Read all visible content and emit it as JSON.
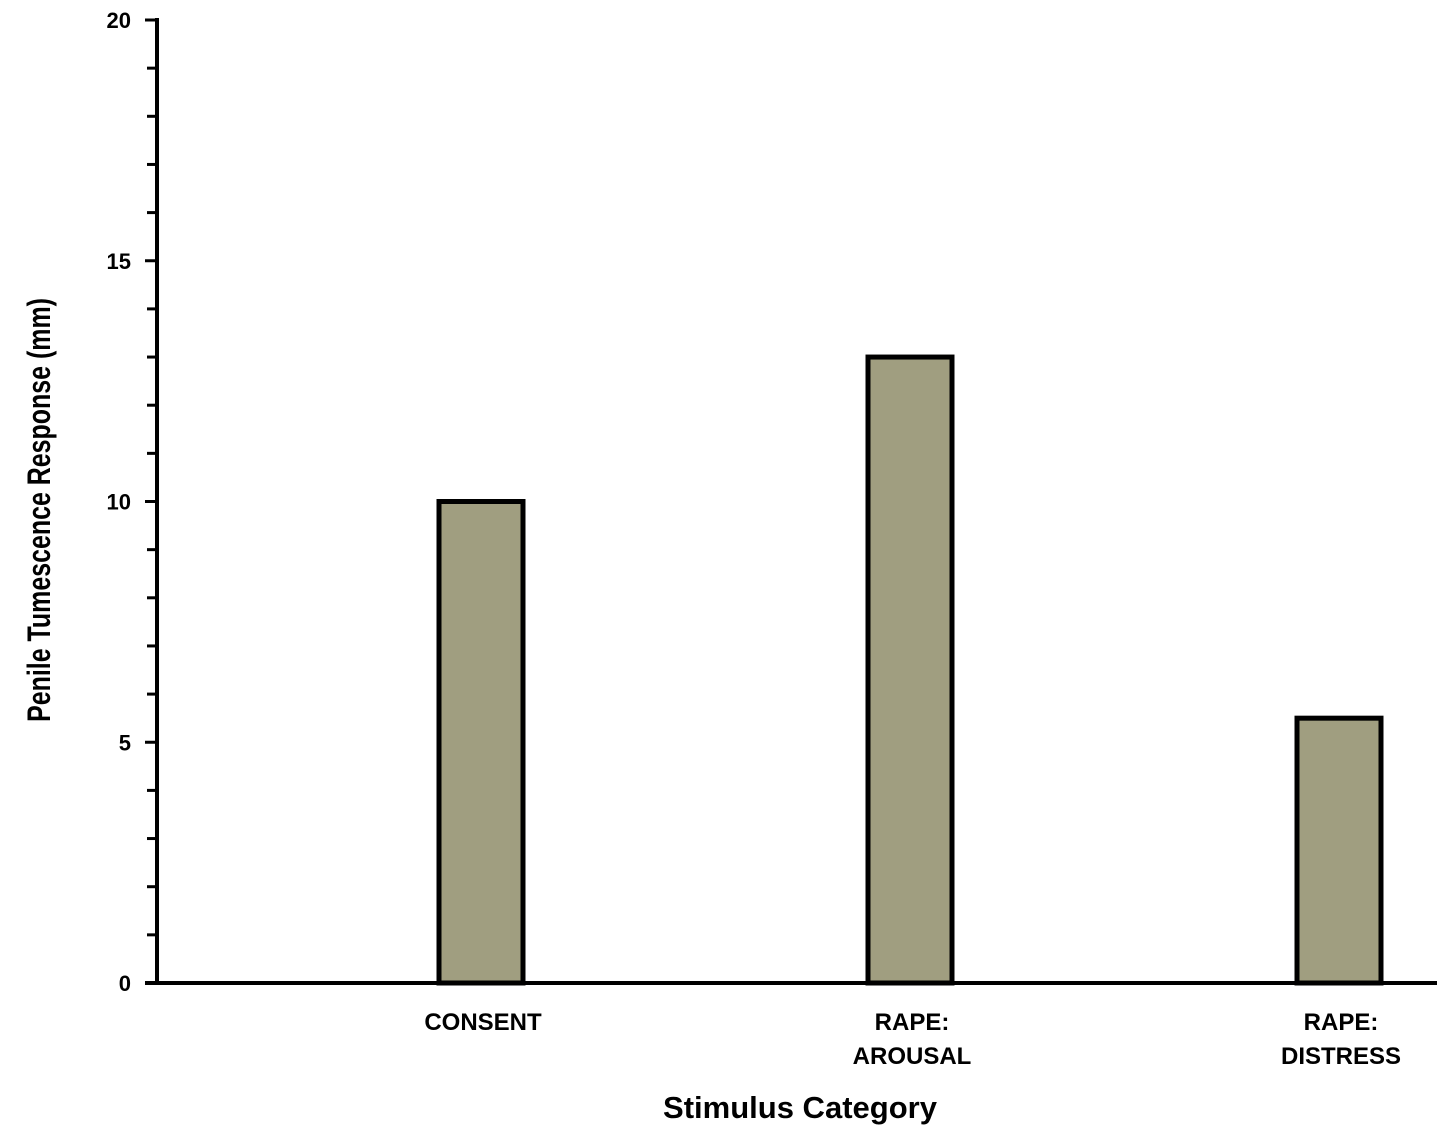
{
  "chart_data": {
    "type": "bar",
    "categories": [
      [
        "CONSENT"
      ],
      [
        "RAPE:",
        "AROUSAL"
      ],
      [
        "RAPE:",
        "DISTRESS"
      ]
    ],
    "category_names": [
      "CONSENT",
      "RAPE: AROUSAL",
      "RAPE: DISTRESS"
    ],
    "values": [
      10,
      13,
      5.5
    ],
    "xlabel": "Stimulus Category",
    "ylabel": "Penile Tumescence Response (mm)",
    "ylim": [
      0,
      20
    ],
    "major_ticks": [
      0,
      5,
      10,
      15,
      20
    ],
    "minor_tick_step": 1,
    "grid": false,
    "legend": "none",
    "colors": {
      "bar_fill": "#a09e80",
      "bar_stroke": "#000000",
      "axis": "#000000"
    }
  }
}
